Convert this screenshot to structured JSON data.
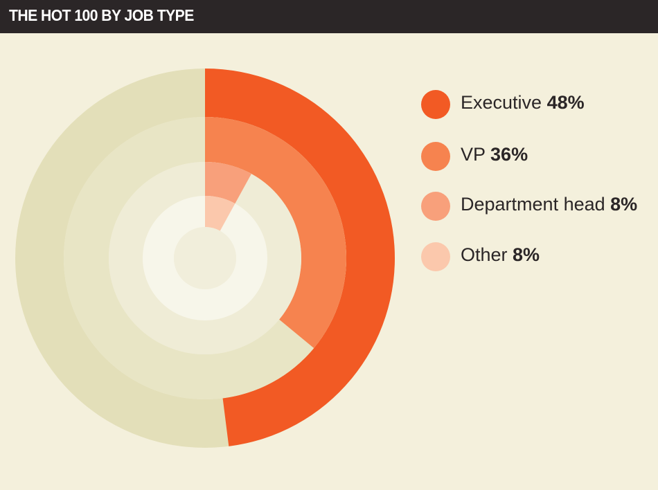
{
  "header": {
    "title": "THE HOT 100 BY JOB TYPE"
  },
  "chart_data": {
    "type": "pie",
    "variant": "concentric-radial-rings",
    "title": "THE HOT 100 BY JOB TYPE",
    "legend_position": "right",
    "start_angle": "12 o'clock, clockwise",
    "series": [
      {
        "name": "Executive",
        "value": 48,
        "label": "48%",
        "color": "#f25a24",
        "track_color": "#e3dfb9"
      },
      {
        "name": "VP",
        "value": 36,
        "label": "36%",
        "color": "#f6834f",
        "track_color": "#e8e5c5"
      },
      {
        "name": "Department head",
        "value": 8,
        "label": "8%",
        "color": "#f8a07b",
        "track_color": "#efecd6"
      },
      {
        "name": "Other",
        "value": 8,
        "label": "8%",
        "color": "#fbc8ac",
        "track_color": "#f7f6ea"
      }
    ],
    "center_color": "#f1eedb"
  }
}
